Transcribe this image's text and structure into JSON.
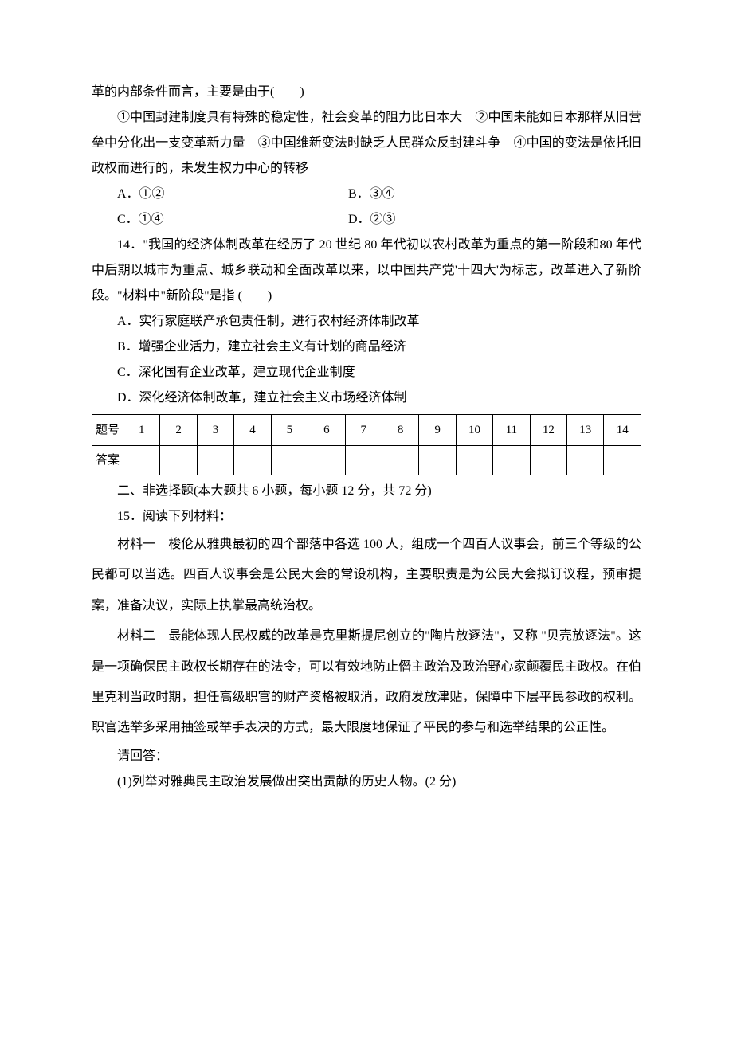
{
  "q13": {
    "stem_tail": "革的内部条件而言，主要是由于(　　)",
    "statements": "①中国封建制度具有特殊的稳定性，社会变革的阻力比日本大　②中国未能如日本那样从旧营垒中分化出一支变革新力量　③中国维新变法时缺乏人民群众反封建斗争　④中国的变法是依托旧政权而进行的，未发生权力中心的转移",
    "A": "A．①②",
    "B": "B．③④",
    "C": "C．①④",
    "D": "D．②③"
  },
  "q14": {
    "stem": "14．\"我国的经济体制改革在经历了 20 世纪 80 年代初以农村改革为重点的第一阶段和80 年代中后期以城市为重点、城乡联动和全面改革以来，以中国共产党'十四大'为标志，改革进入了新阶段。\"材料中\"新阶段\"是指 (　　)",
    "A": "A．实行家庭联产承包责任制，进行农村经济体制改革",
    "B": "B．增强企业活力，建立社会主义有计划的商品经济",
    "C": "C．深化国有企业改革，建立现代企业制度",
    "D": "D．深化经济体制改革，建立社会主义市场经济体制"
  },
  "answer_table": {
    "row1_label": "题号",
    "row2_label": "答案",
    "cols": [
      "1",
      "2",
      "3",
      "4",
      "5",
      "6",
      "7",
      "8",
      "9",
      "10",
      "11",
      "12",
      "13",
      "14"
    ]
  },
  "section2": {
    "heading": "二、非选择题(本大题共 6 小题，每小题 12 分，共 72 分)",
    "q15_lead": "15．阅读下列材料：",
    "m1": "材料一　梭伦从雅典最初的四个部落中各选 100 人，组成一个四百人议事会，前三个等级的公民都可以当选。四百人议事会是公民大会的常设机构，主要职责是为公民大会拟订议程，预审提案，准备决议，实际上执掌最高统治权。",
    "m2": "材料二　最能体现人民权威的改革是克里斯提尼创立的\"陶片放逐法\"，又称 \"贝壳放逐法\"。这是一项确保民主政权长期存在的法令，可以有效地防止僭主政治及政治野心家颠覆民主政权。在伯里克利当政时期，担任高级职官的财产资格被取消，政府发放津贴，保障中下层平民参政的权利。职官选举多采用抽签或举手表决的方式，最大限度地保证了平民的参与和选举结果的公正性。",
    "answer_prompt": "请回答：",
    "sub1": "(1)列举对雅典民主政治发展做出突出贡献的历史人物。(2 分)"
  }
}
